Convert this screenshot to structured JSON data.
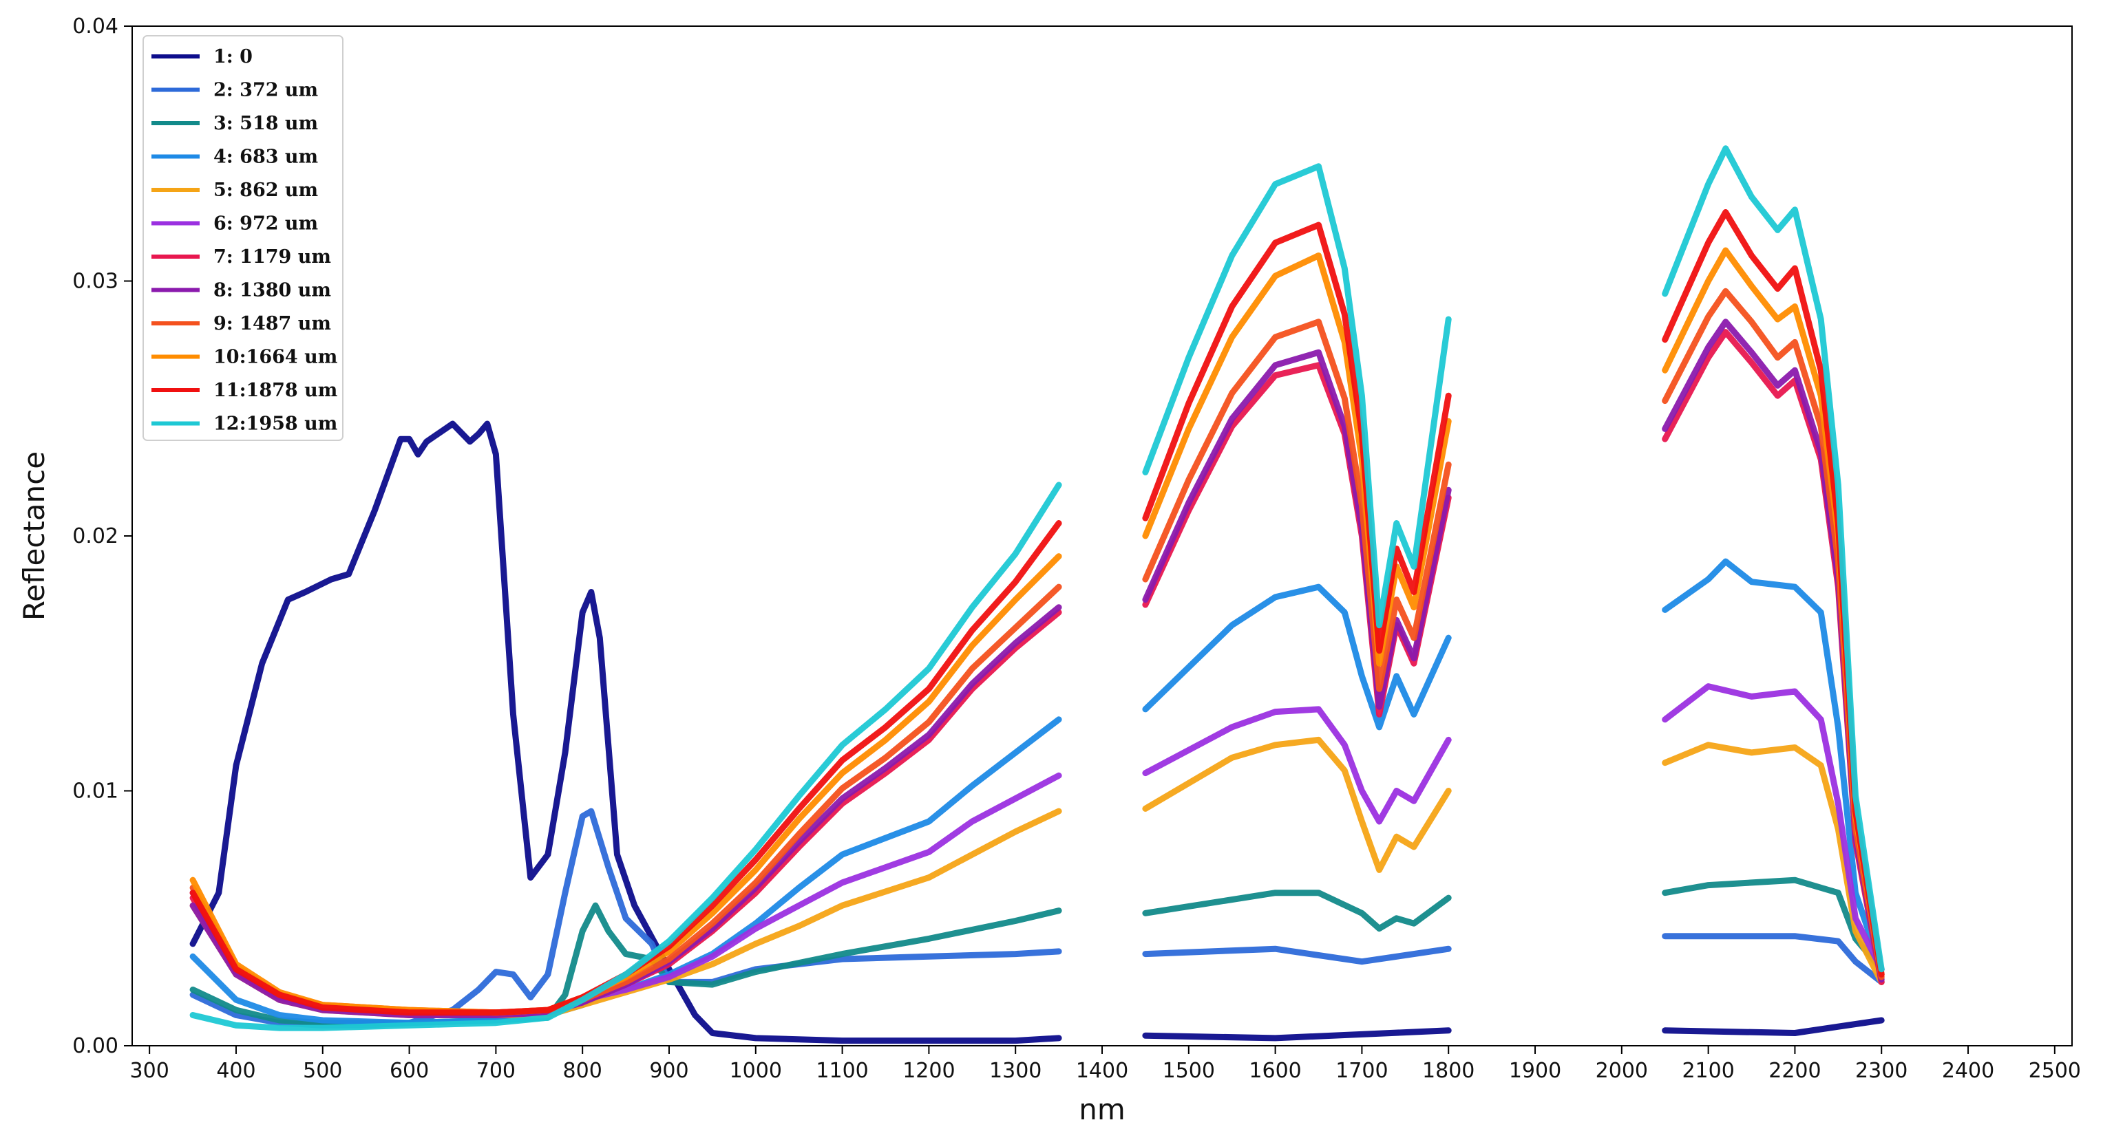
{
  "chart_data": {
    "type": "line",
    "title": "",
    "xlabel": "nm",
    "ylabel": "Reflectance",
    "xlim": [
      280,
      2520
    ],
    "ylim": [
      0,
      0.04
    ],
    "xticks": [
      300,
      400,
      500,
      600,
      700,
      800,
      900,
      1000,
      1100,
      1200,
      1300,
      1400,
      1500,
      1600,
      1700,
      1800,
      1900,
      2000,
      2100,
      2200,
      2300,
      2400,
      2500
    ],
    "yticks": [
      0.0,
      0.01,
      0.02,
      0.03,
      0.04
    ],
    "ytick_labels": [
      "0.00",
      "0.01",
      "0.02",
      "0.03",
      "0.04"
    ],
    "grid": false,
    "legend_position": "top-left",
    "gaps_nm": [
      [
        1350,
        1450
      ],
      [
        1800,
        2050
      ]
    ],
    "series": [
      {
        "name": "1: 0",
        "label_lines": [
          "1:  0"
        ],
        "color": "#0d0d8c",
        "x": [
          350,
          380,
          400,
          430,
          460,
          480,
          510,
          530,
          560,
          590,
          600,
          610,
          620,
          650,
          670,
          680,
          690,
          700,
          720,
          740,
          760,
          780,
          800,
          810,
          820,
          840,
          860,
          900,
          930,
          950,
          1000,
          1100,
          1200,
          1300,
          1350,
          1450,
          1600,
          1800,
          2050,
          2200,
          2300
        ],
        "y": [
          0.004,
          0.006,
          0.011,
          0.015,
          0.0175,
          0.0178,
          0.0183,
          0.0185,
          0.021,
          0.0238,
          0.0238,
          0.0232,
          0.0237,
          0.0244,
          0.0237,
          0.024,
          0.0244,
          0.0232,
          0.013,
          0.0066,
          0.0075,
          0.0115,
          0.017,
          0.0178,
          0.016,
          0.0075,
          0.0055,
          0.003,
          0.0012,
          0.0005,
          0.0003,
          0.0002,
          0.0002,
          0.0002,
          0.0003,
          0.0004,
          0.0003,
          0.0006,
          0.0006,
          0.0005,
          0.001
        ]
      },
      {
        "name": "2: 372 um",
        "label_lines": [
          "2:  372   um"
        ],
        "color": "#2d6ad9",
        "x": [
          350,
          400,
          450,
          500,
          550,
          600,
          650,
          680,
          700,
          720,
          740,
          760,
          780,
          800,
          810,
          830,
          850,
          880,
          900,
          950,
          1000,
          1100,
          1200,
          1300,
          1350,
          1450,
          1600,
          1700,
          1800,
          2050,
          2200,
          2250,
          2270,
          2300
        ],
        "y": [
          0.002,
          0.0012,
          0.0009,
          0.0008,
          0.0008,
          0.0009,
          0.0014,
          0.0022,
          0.0029,
          0.0028,
          0.0019,
          0.0028,
          0.006,
          0.009,
          0.0092,
          0.007,
          0.005,
          0.004,
          0.0025,
          0.0025,
          0.003,
          0.0034,
          0.0035,
          0.0036,
          0.0037,
          0.0036,
          0.0038,
          0.0033,
          0.0038,
          0.0043,
          0.0043,
          0.0041,
          0.0033,
          0.0025
        ]
      },
      {
        "name": "3: 518 um",
        "label_lines": [
          "3:  518   um"
        ],
        "color": "#128a8a",
        "x": [
          350,
          400,
          450,
          500,
          600,
          700,
          760,
          780,
          800,
          815,
          830,
          850,
          880,
          900,
          950,
          1000,
          1100,
          1200,
          1300,
          1350,
          1450,
          1600,
          1650,
          1700,
          1720,
          1740,
          1760,
          1800,
          2050,
          2100,
          2200,
          2250,
          2270,
          2300
        ],
        "y": [
          0.0022,
          0.0014,
          0.001,
          0.0009,
          0.0009,
          0.001,
          0.0011,
          0.002,
          0.0045,
          0.0055,
          0.0045,
          0.0036,
          0.0034,
          0.0025,
          0.0024,
          0.0029,
          0.0036,
          0.0042,
          0.0049,
          0.0053,
          0.0052,
          0.006,
          0.006,
          0.0052,
          0.0046,
          0.005,
          0.0048,
          0.0058,
          0.006,
          0.0063,
          0.0065,
          0.006,
          0.0042,
          0.003
        ]
      },
      {
        "name": "4: 683 um",
        "label_lines": [
          "4:  683   um"
        ],
        "color": "#1e8ae6",
        "x": [
          350,
          400,
          450,
          500,
          600,
          700,
          760,
          780,
          800,
          820,
          850,
          900,
          950,
          1000,
          1050,
          1100,
          1200,
          1250,
          1300,
          1350,
          1450,
          1550,
          1600,
          1650,
          1680,
          1700,
          1720,
          1740,
          1760,
          1800,
          2050,
          2100,
          2120,
          2150,
          2200,
          2230,
          2250,
          2270,
          2300
        ],
        "y": [
          0.0035,
          0.0018,
          0.0012,
          0.001,
          0.0009,
          0.001,
          0.0012,
          0.0014,
          0.0016,
          0.002,
          0.0022,
          0.0028,
          0.0036,
          0.0048,
          0.0062,
          0.0075,
          0.0088,
          0.0102,
          0.0115,
          0.0128,
          0.0132,
          0.0165,
          0.0176,
          0.018,
          0.017,
          0.0145,
          0.0125,
          0.0145,
          0.013,
          0.016,
          0.0171,
          0.0183,
          0.019,
          0.0182,
          0.018,
          0.017,
          0.0125,
          0.006,
          0.003
        ]
      },
      {
        "name": "5: 862 um",
        "label_lines": [
          "5:  862   um"
        ],
        "color": "#f5a416",
        "x": [
          350,
          400,
          450,
          500,
          600,
          700,
          760,
          800,
          850,
          900,
          950,
          1000,
          1050,
          1100,
          1200,
          1250,
          1300,
          1350,
          1450,
          1550,
          1600,
          1650,
          1680,
          1700,
          1720,
          1740,
          1760,
          1800,
          2050,
          2100,
          2150,
          2200,
          2230,
          2250,
          2270,
          2300
        ],
        "y": [
          0.0055,
          0.0028,
          0.0018,
          0.0014,
          0.0012,
          0.0012,
          0.0012,
          0.0016,
          0.0021,
          0.0026,
          0.0032,
          0.004,
          0.0047,
          0.0055,
          0.0066,
          0.0075,
          0.0084,
          0.0092,
          0.0093,
          0.0113,
          0.0118,
          0.012,
          0.0108,
          0.0088,
          0.0069,
          0.0082,
          0.0078,
          0.01,
          0.0111,
          0.0118,
          0.0115,
          0.0117,
          0.011,
          0.0085,
          0.0045,
          0.0025
        ]
      },
      {
        "name": "6: 972 um",
        "label_lines": [
          "6:  972   um"
        ],
        "color": "#9b30e0",
        "x": [
          350,
          400,
          450,
          500,
          600,
          700,
          760,
          800,
          850,
          900,
          950,
          1000,
          1050,
          1100,
          1200,
          1250,
          1300,
          1350,
          1450,
          1550,
          1600,
          1650,
          1680,
          1700,
          1720,
          1740,
          1760,
          1800,
          2050,
          2100,
          2150,
          2200,
          2230,
          2250,
          2270,
          2300
        ],
        "y": [
          0.006,
          0.003,
          0.0019,
          0.0015,
          0.0013,
          0.0013,
          0.0013,
          0.0018,
          0.0022,
          0.0027,
          0.0035,
          0.0046,
          0.0055,
          0.0064,
          0.0076,
          0.0088,
          0.0097,
          0.0106,
          0.0107,
          0.0125,
          0.0131,
          0.0132,
          0.0118,
          0.01,
          0.0088,
          0.01,
          0.0096,
          0.012,
          0.0128,
          0.0141,
          0.0137,
          0.0139,
          0.0128,
          0.0095,
          0.005,
          0.003
        ]
      },
      {
        "name": "7: 1179 um",
        "label_lines": [
          "7:  1179   um"
        ],
        "color": "#e8174f",
        "x": [
          350,
          400,
          450,
          500,
          600,
          700,
          760,
          800,
          850,
          900,
          950,
          1000,
          1050,
          1100,
          1150,
          1200,
          1250,
          1300,
          1350,
          1450,
          1500,
          1550,
          1600,
          1650,
          1680,
          1700,
          1720,
          1740,
          1760,
          1800,
          2050,
          2100,
          2120,
          2150,
          2180,
          2200,
          2230,
          2250,
          2270,
          2300
        ],
        "y": [
          0.0058,
          0.0029,
          0.0019,
          0.0015,
          0.0013,
          0.0013,
          0.0013,
          0.0017,
          0.0024,
          0.0032,
          0.0045,
          0.006,
          0.0078,
          0.0095,
          0.0107,
          0.012,
          0.014,
          0.0156,
          0.017,
          0.0173,
          0.021,
          0.0243,
          0.0263,
          0.0267,
          0.024,
          0.02,
          0.013,
          0.0165,
          0.015,
          0.0215,
          0.0238,
          0.027,
          0.028,
          0.0268,
          0.0255,
          0.0261,
          0.023,
          0.018,
          0.008,
          0.0025
        ]
      },
      {
        "name": "8: 1380 um",
        "label_lines": [
          "8:  1380   um"
        ],
        "color": "#8b1aad",
        "x": [
          350,
          400,
          450,
          500,
          600,
          700,
          760,
          800,
          850,
          900,
          950,
          1000,
          1050,
          1100,
          1150,
          1200,
          1250,
          1300,
          1350,
          1450,
          1500,
          1550,
          1600,
          1650,
          1680,
          1700,
          1720,
          1740,
          1760,
          1800,
          2050,
          2100,
          2120,
          2150,
          2180,
          2200,
          2230,
          2250,
          2270,
          2300
        ],
        "y": [
          0.0055,
          0.0028,
          0.0018,
          0.0014,
          0.0012,
          0.0012,
          0.0013,
          0.0017,
          0.0024,
          0.0033,
          0.0046,
          0.0062,
          0.008,
          0.0097,
          0.0109,
          0.0122,
          0.0142,
          0.0158,
          0.0172,
          0.0175,
          0.0213,
          0.0246,
          0.0267,
          0.0272,
          0.0243,
          0.0203,
          0.0133,
          0.0167,
          0.0152,
          0.0218,
          0.0242,
          0.0274,
          0.0284,
          0.0272,
          0.0259,
          0.0265,
          0.0233,
          0.0183,
          0.0082,
          0.0026
        ]
      },
      {
        "name": "9: 1487 um",
        "label_lines": [
          "9:  1487   um"
        ],
        "color": "#f4511e",
        "x": [
          350,
          400,
          450,
          500,
          600,
          700,
          760,
          800,
          850,
          900,
          950,
          1000,
          1050,
          1100,
          1150,
          1200,
          1250,
          1300,
          1350,
          1450,
          1500,
          1550,
          1600,
          1650,
          1680,
          1700,
          1720,
          1740,
          1760,
          1800,
          2050,
          2100,
          2120,
          2150,
          2180,
          2200,
          2230,
          2250,
          2270,
          2300
        ],
        "y": [
          0.0062,
          0.0031,
          0.002,
          0.0016,
          0.0014,
          0.0013,
          0.0014,
          0.0018,
          0.0025,
          0.0034,
          0.0048,
          0.0064,
          0.0083,
          0.0101,
          0.0113,
          0.0127,
          0.0148,
          0.0164,
          0.018,
          0.0183,
          0.0222,
          0.0256,
          0.0278,
          0.0284,
          0.0254,
          0.0212,
          0.014,
          0.0175,
          0.016,
          0.0228,
          0.0253,
          0.0286,
          0.0296,
          0.0284,
          0.027,
          0.0276,
          0.0243,
          0.019,
          0.0085,
          0.0027
        ]
      },
      {
        "name": "10: 1664 um",
        "label_lines": [
          "10:1664   um"
        ],
        "color": "#ff8c00",
        "x": [
          350,
          400,
          450,
          500,
          600,
          700,
          760,
          800,
          850,
          900,
          950,
          1000,
          1050,
          1100,
          1150,
          1200,
          1250,
          1300,
          1350,
          1450,
          1500,
          1550,
          1600,
          1650,
          1680,
          1700,
          1720,
          1740,
          1760,
          1800,
          2050,
          2100,
          2120,
          2150,
          2180,
          2200,
          2230,
          2250,
          2270,
          2300
        ],
        "y": [
          0.0065,
          0.0032,
          0.0021,
          0.0016,
          0.0014,
          0.0013,
          0.0014,
          0.0019,
          0.0027,
          0.0037,
          0.0052,
          0.0069,
          0.0089,
          0.0107,
          0.012,
          0.0135,
          0.0157,
          0.0175,
          0.0192,
          0.02,
          0.0242,
          0.0278,
          0.0302,
          0.031,
          0.0276,
          0.023,
          0.015,
          0.0188,
          0.0172,
          0.0245,
          0.0265,
          0.03,
          0.0312,
          0.0298,
          0.0285,
          0.029,
          0.0255,
          0.02,
          0.009,
          0.0028
        ]
      },
      {
        "name": "11: 1878 um",
        "label_lines": [
          "11:1878   um"
        ],
        "color": "#f01010",
        "x": [
          350,
          400,
          450,
          500,
          600,
          700,
          760,
          800,
          850,
          900,
          950,
          1000,
          1050,
          1100,
          1150,
          1200,
          1250,
          1300,
          1350,
          1450,
          1500,
          1550,
          1600,
          1650,
          1680,
          1700,
          1720,
          1740,
          1760,
          1800,
          2050,
          2100,
          2120,
          2150,
          2180,
          2200,
          2230,
          2250,
          2270,
          2300
        ],
        "y": [
          0.006,
          0.003,
          0.002,
          0.0015,
          0.0013,
          0.0013,
          0.0014,
          0.0019,
          0.0028,
          0.0039,
          0.0055,
          0.0073,
          0.0093,
          0.0112,
          0.0125,
          0.014,
          0.0163,
          0.0182,
          0.0205,
          0.0207,
          0.0252,
          0.029,
          0.0315,
          0.0322,
          0.0287,
          0.024,
          0.0155,
          0.0195,
          0.0178,
          0.0255,
          0.0277,
          0.0315,
          0.0327,
          0.031,
          0.0297,
          0.0305,
          0.0265,
          0.0205,
          0.0092,
          0.0028
        ]
      },
      {
        "name": "12: 1958 um",
        "label_lines": [
          "12:1958   um"
        ],
        "color": "#1ec8d4",
        "x": [
          350,
          400,
          450,
          500,
          600,
          700,
          760,
          800,
          850,
          900,
          950,
          1000,
          1050,
          1100,
          1150,
          1200,
          1250,
          1300,
          1350,
          1450,
          1500,
          1550,
          1600,
          1650,
          1680,
          1700,
          1720,
          1740,
          1760,
          1800,
          2050,
          2100,
          2120,
          2150,
          2180,
          2200,
          2230,
          2250,
          2270,
          2300
        ],
        "y": [
          0.0012,
          0.0008,
          0.0007,
          0.0007,
          0.0008,
          0.0009,
          0.0011,
          0.0018,
          0.0028,
          0.0041,
          0.0058,
          0.0077,
          0.0098,
          0.0118,
          0.0132,
          0.0148,
          0.0172,
          0.0193,
          0.022,
          0.0225,
          0.027,
          0.031,
          0.0338,
          0.0345,
          0.0305,
          0.0255,
          0.0165,
          0.0205,
          0.0188,
          0.0285,
          0.0295,
          0.0338,
          0.0352,
          0.0333,
          0.032,
          0.0328,
          0.0285,
          0.022,
          0.0098,
          0.003
        ]
      }
    ]
  }
}
